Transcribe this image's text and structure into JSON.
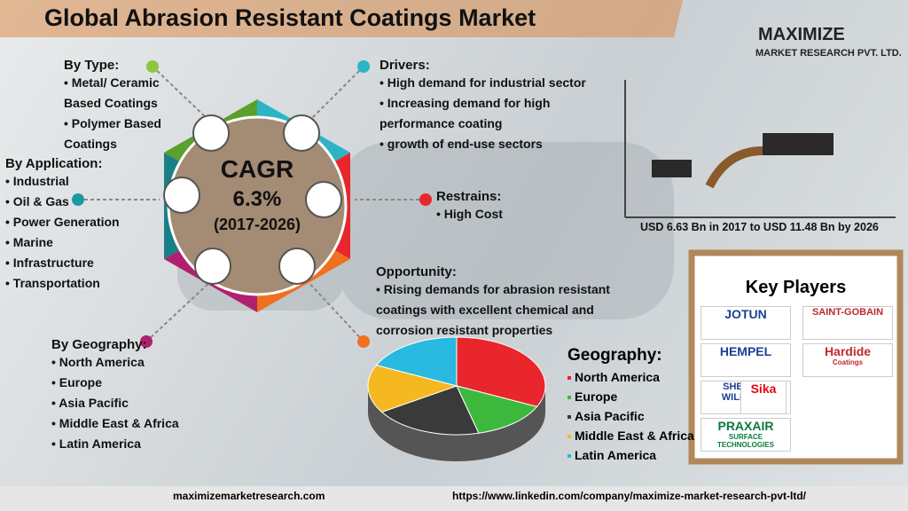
{
  "header": {
    "title": "Global Abrasion Resistant Coatings Market",
    "brand": "MAXIMIZE",
    "brand_sub": "MARKET RESEARCH PVT. LTD."
  },
  "by_type": {
    "label": "By Type:",
    "items": [
      "Metal/ Ceramic Based Coatings",
      "Polymer Based Coatings"
    ]
  },
  "by_application": {
    "label": "By Application:",
    "items": [
      "Industrial",
      "Oil & Gas",
      "Power Generation",
      "Marine",
      "Infrastructure",
      "Transportation"
    ]
  },
  "by_geography": {
    "label": "By Geography:",
    "items": [
      "North America",
      "Europe",
      "Asia Pacific",
      "Middle East & Africa",
      "Latin America"
    ]
  },
  "drivers": {
    "label": "Drivers:",
    "items": [
      "High demand for industrial sector",
      "Increasing demand for high performance coating",
      "growth of end-use sectors"
    ]
  },
  "restrains": {
    "label": "Restrains:",
    "items": [
      "High Cost"
    ]
  },
  "opportunity": {
    "label": "Opportunity:",
    "items": [
      "Rising demands for abrasion resistant coatings with excellent chemical and corrosion resistant properties"
    ]
  },
  "cagr": {
    "label": "CAGR",
    "value": "6.3%",
    "period": "(2017-2026)"
  },
  "market_size": "USD 6.63 Bn in 2017 to USD 11.48 Bn by 2026",
  "key_players": {
    "label": "Key Players",
    "items": [
      {
        "name": "JOTUN"
      },
      {
        "name": "SAINT-GOBAIN"
      },
      {
        "name": "HEMPEL"
      },
      {
        "name": "Hardide",
        "sub": "Coatings"
      },
      {
        "name": "SHERWIN WILLIAMS"
      },
      {
        "name": "Sika"
      },
      {
        "name": "PRAXAIR",
        "sub": "SURFACE TECHNOLOGIES"
      }
    ]
  },
  "geography_pie": {
    "label": "Geography:",
    "categories": [
      "North America",
      "Europe",
      "Asia Pacific",
      "Middle East & Africa",
      "Latin America"
    ],
    "values": [
      32,
      14,
      20,
      16,
      18
    ],
    "colors": [
      "#e8262c",
      "#3cb93c",
      "#3a3a3a",
      "#f5b820",
      "#29b8e0"
    ]
  },
  "footer": {
    "left": "maximizemarketresearch.com",
    "right": "https://www.linkedin.com/company/maximize-market-research-pvt-ltd/"
  }
}
